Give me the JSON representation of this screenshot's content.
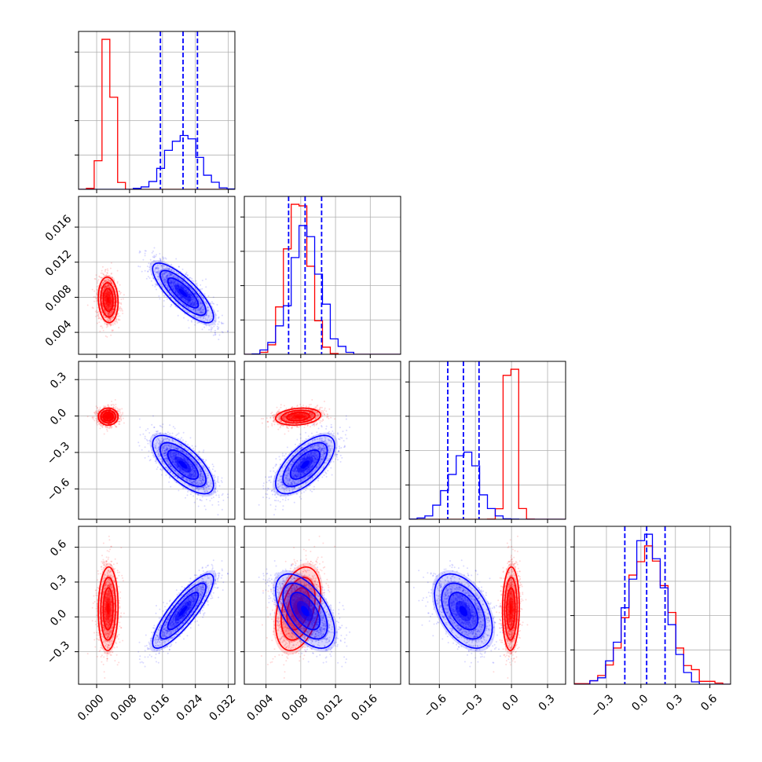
{
  "chart_data": {
    "type": "corner",
    "parameters": 4,
    "series": [
      {
        "color": "#ff0000",
        "mean": [
          0.0028,
          0.0077,
          -0.005,
          0.07
        ],
        "std": [
          0.0012,
          0.0013,
          0.035,
          0.18
        ],
        "corr": {
          "0-1": -0.1,
          "0-2": 0.0,
          "0-3": 0.05,
          "1-2": 0.2,
          "1-3": 0.35,
          "2-3": 0.05
        }
      },
      {
        "color": "#0000ff",
        "mean": [
          0.021,
          0.0085,
          -0.4,
          0.05
        ],
        "std": [
          0.0037,
          0.0017,
          0.12,
          0.16
        ],
        "corr": {
          "0-1": -0.8,
          "0-2": -0.7,
          "0-3": 0.85,
          "1-2": 0.65,
          "1-3": -0.55,
          "2-3": -0.45
        }
      }
    ],
    "quantile_color": "#0000ff",
    "quantiles": [
      [
        0.0155,
        0.021,
        0.0245
      ],
      [
        0.0066,
        0.0085,
        0.0104
      ],
      [
        -0.53,
        -0.4,
        -0.27
      ],
      [
        -0.14,
        0.05,
        0.21
      ]
    ],
    "ranges": [
      [
        -0.0044,
        0.0336
      ],
      [
        0.0015,
        0.0195
      ],
      [
        -0.85,
        0.45
      ],
      [
        -0.58,
        0.78
      ]
    ],
    "ticks": [
      [
        0.0,
        0.008,
        0.016,
        0.024,
        0.032
      ],
      [
        0.004,
        0.008,
        0.012,
        0.016
      ],
      [
        -0.6,
        -0.3,
        0.0,
        0.3
      ],
      [
        -0.3,
        0.0,
        0.3,
        0.6
      ]
    ],
    "tick_labels": [
      [
        "0.000",
        "0.008",
        "0.016",
        "0.024",
        "0.032"
      ],
      [
        "0.004",
        "0.008",
        "0.012",
        "0.016"
      ],
      [
        "−0.6",
        "−0.3",
        "0.0",
        "0.3"
      ],
      [
        "−0.3",
        "0.0",
        "0.3",
        "0.6"
      ]
    ],
    "grid": true
  }
}
